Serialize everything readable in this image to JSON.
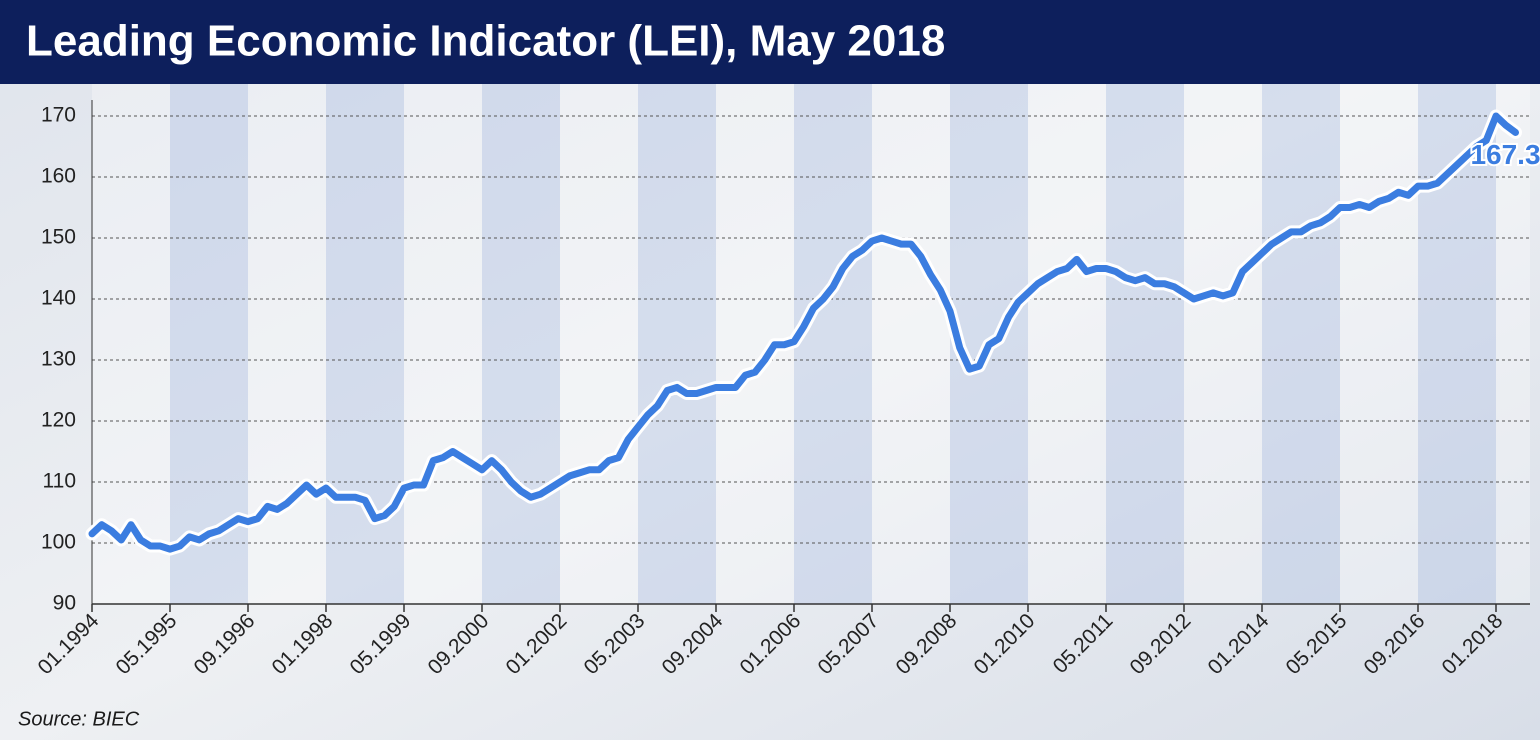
{
  "chart_data": {
    "type": "line",
    "title": "Leading Economic Indicator (LEI), May 2018",
    "source": "Source: BIEC",
    "categories": [
      "01.1994",
      null,
      null,
      null,
      null,
      null,
      null,
      null,
      "05.1995",
      null,
      null,
      null,
      null,
      null,
      null,
      null,
      "09.1996",
      null,
      null,
      null,
      null,
      null,
      null,
      null,
      "01.1998",
      null,
      null,
      null,
      null,
      null,
      null,
      null,
      "05.1999",
      null,
      null,
      null,
      null,
      null,
      null,
      null,
      "09.2000",
      null,
      null,
      null,
      null,
      null,
      null,
      null,
      "01.2002",
      null,
      null,
      null,
      null,
      null,
      null,
      null,
      "05.2003",
      null,
      null,
      null,
      null,
      null,
      null,
      null,
      "09.2004",
      null,
      null,
      null,
      null,
      null,
      null,
      null,
      "01.2006",
      null,
      null,
      null,
      null,
      null,
      null,
      null,
      "05.2007",
      null,
      null,
      null,
      null,
      null,
      null,
      null,
      "09.2008",
      null,
      null,
      null,
      null,
      null,
      null,
      null,
      "01.2010",
      null,
      null,
      null,
      null,
      null,
      null,
      null,
      "05.2011",
      null,
      null,
      null,
      null,
      null,
      null,
      null,
      "09.2012",
      null,
      null,
      null,
      null,
      null,
      null,
      null,
      "01.2014",
      null,
      null,
      null,
      null,
      null,
      null,
      null,
      "05.2015",
      null,
      null,
      null,
      null,
      null,
      null,
      null,
      "09.2016",
      null,
      null,
      null,
      null,
      null,
      null,
      null,
      "01.2018",
      null,
      null
    ],
    "values": [
      101.5,
      103,
      102,
      100.5,
      103,
      100.5,
      99.5,
      99.5,
      99,
      99.5,
      101,
      100.5,
      101.5,
      102,
      103,
      104,
      103.5,
      104,
      106,
      105.5,
      106.5,
      108,
      109.5,
      108,
      109,
      107.5,
      107.5,
      107.5,
      107,
      104,
      104.5,
      106,
      109,
      109.5,
      109.5,
      113.5,
      114,
      115,
      114,
      113,
      112,
      113.5,
      112,
      110,
      108.5,
      107.5,
      108,
      109,
      110,
      111,
      111.5,
      112,
      112,
      113.5,
      114,
      117,
      119,
      121,
      122.5,
      125,
      125.5,
      124.5,
      124.5,
      125,
      125.5,
      125.5,
      125.5,
      127.5,
      128,
      130,
      132.5,
      132.5,
      133,
      135.5,
      138.5,
      140,
      142,
      145,
      147,
      148,
      149.5,
      150,
      149.5,
      149,
      149,
      147,
      144,
      141.5,
      138,
      132,
      128.5,
      129,
      132.5,
      133.5,
      137,
      139.5,
      141,
      142.5,
      143.5,
      144.5,
      145,
      146.5,
      144.5,
      145,
      145,
      144.5,
      143.5,
      143,
      143.5,
      142.5,
      142.5,
      142,
      141,
      140,
      140.5,
      141,
      140.5,
      141,
      144.5,
      146,
      147.5,
      149,
      150,
      151,
      151,
      152,
      152.5,
      153.5,
      155,
      155,
      155.5,
      155,
      156,
      156.5,
      157.5,
      157,
      158.5,
      158.5,
      159,
      160.5,
      162,
      163.5,
      165,
      166,
      170,
      168.5,
      167.3
    ],
    "color": "#3b7de0",
    "ylim": [
      90,
      170
    ],
    "yticks": [
      90,
      100,
      110,
      120,
      130,
      140,
      150,
      160,
      170
    ],
    "grid": true
  }
}
